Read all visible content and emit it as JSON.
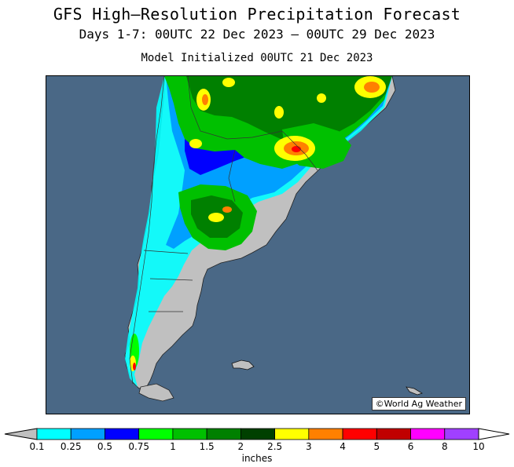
{
  "header": {
    "title": "GFS High—Resolution Precipitation Forecast",
    "period": "Days 1-7: 00UTC 22 Dec 2023 — 00UTC 29 Dec 2023",
    "initialized": "Model Initialized 00UTC 21 Dec 2023"
  },
  "map": {
    "credit": "©World Ag Weather",
    "ocean_color": "#4a6886",
    "land_color": "#c0c0c0"
  },
  "legend": {
    "units": "inches",
    "levels": [
      "0.1",
      "0.25",
      "0.5",
      "0.75",
      "1",
      "1.5",
      "2",
      "2.5",
      "3",
      "4",
      "5",
      "6",
      "8",
      "10"
    ],
    "colors": [
      "#00ffff",
      "#00a0ff",
      "#0000ff",
      "#00ff00",
      "#00c000",
      "#008000",
      "#004000",
      "#ffff00",
      "#ff8000",
      "#ff0000",
      "#c00000",
      "#ff00ff",
      "#a040ff"
    ],
    "endcap_color": "#c0c0c0"
  }
}
